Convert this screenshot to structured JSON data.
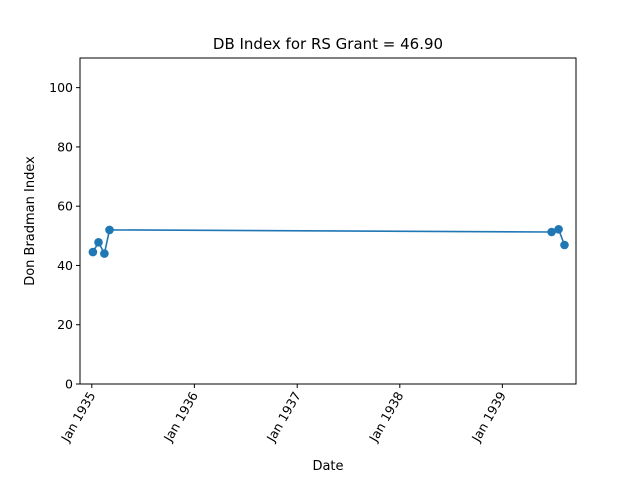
{
  "chart_data": {
    "type": "line",
    "title": "DB Index for RS Grant = 46.90",
    "xlabel": "Date",
    "ylabel": "Don Bradman Index",
    "x_ticks": [
      "Jan 1935",
      "Jan 1936",
      "Jan 1937",
      "Jan 1938",
      "Jan 1939"
    ],
    "y_ticks": [
      0,
      20,
      40,
      60,
      80,
      100
    ],
    "xlim": [
      "1934-11-20",
      "1939-09-20"
    ],
    "ylim": [
      0,
      110
    ],
    "grid": false,
    "legend": "none",
    "series": [
      {
        "color": "#1f77b4",
        "marker": "circle",
        "points": [
          {
            "x": "1935-01-05",
            "y": 44.5
          },
          {
            "x": "1935-01-25",
            "y": 47.8
          },
          {
            "x": "1935-02-15",
            "y": 44.0
          },
          {
            "x": "1935-03-05",
            "y": 52.0
          },
          {
            "x": "1939-06-25",
            "y": 51.3
          },
          {
            "x": "1939-07-20",
            "y": 52.2
          },
          {
            "x": "1939-08-10",
            "y": 46.9
          }
        ]
      }
    ]
  }
}
